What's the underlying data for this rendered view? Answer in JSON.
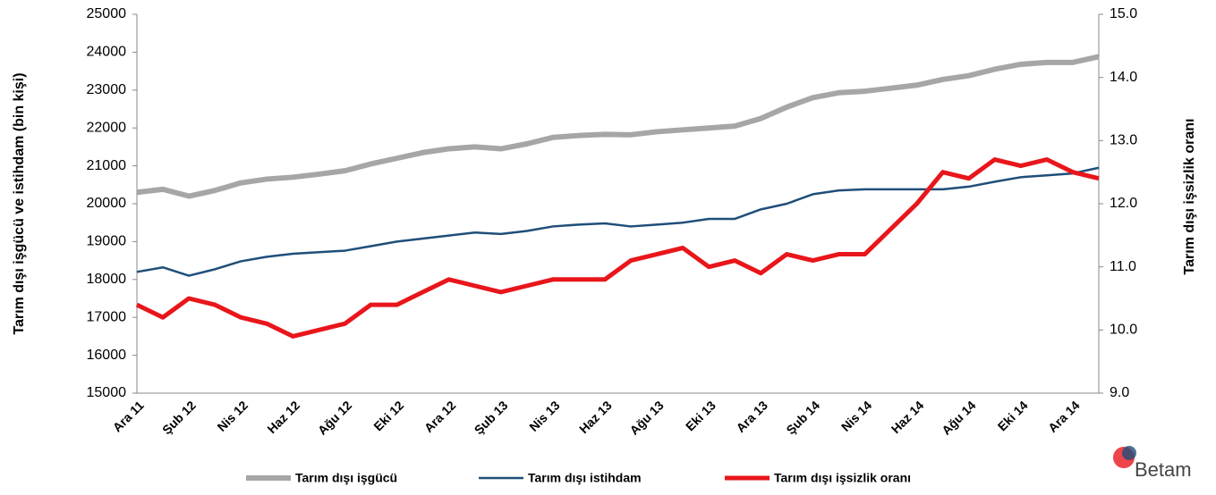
{
  "chart_data": {
    "type": "line",
    "y_label": "Tarım dışı işgücü ve istihdam (bin kişi)",
    "y2_label": "Tarım dışı işsizlik oranı",
    "logo": "Betam",
    "categories": [
      "Ara 11",
      null,
      "Şub 12",
      null,
      "Nis 12",
      null,
      "Haz 12",
      null,
      "Ağu 12",
      null,
      "Eki 12",
      null,
      "Ara 12",
      null,
      "Şub 13",
      null,
      "Nis 13",
      null,
      "Haz 13",
      null,
      "Ağu 13",
      null,
      "Eki 13",
      null,
      "Ara 13",
      null,
      "Şub 14",
      null,
      "Nis 14",
      null,
      "Haz 14",
      null,
      "Ağu 14",
      null,
      "Eki 14",
      null,
      "Ara 14",
      null
    ],
    "ylim": [
      15000,
      25000
    ],
    "yticks": [
      15000,
      16000,
      17000,
      18000,
      19000,
      20000,
      21000,
      22000,
      23000,
      24000,
      25000
    ],
    "y2lim": [
      9,
      15
    ],
    "y2ticks": [
      {
        "value": 9,
        "label": "9.0"
      },
      {
        "value": 10,
        "label": "10.0"
      },
      {
        "value": 11,
        "label": "11.0"
      },
      {
        "value": 12,
        "label": "12.0"
      },
      {
        "value": 13,
        "label": "13.0"
      },
      {
        "value": 14,
        "label": "14.0"
      },
      {
        "value": 15,
        "label": "15.0"
      }
    ],
    "series": [
      {
        "name": "Tarım dışı işgücü",
        "color": "#a6a6a6",
        "width": 6,
        "values": [
          20300,
          20380,
          20200,
          20350,
          20550,
          20650,
          20700,
          20780,
          20870,
          21050,
          21200,
          21350,
          21450,
          21500,
          21450,
          21580,
          21750,
          21800,
          21830,
          21820,
          21900,
          21950,
          22000,
          22050,
          22250,
          22550,
          22800,
          22930,
          22970,
          23050,
          23130,
          23280,
          23380,
          23550,
          23680,
          23730,
          23730,
          23880
        ]
      },
      {
        "name": "Tarım dışı istihdam",
        "color": "#1f4e79",
        "width": 2.5,
        "values": [
          18200,
          18320,
          18100,
          18270,
          18480,
          18600,
          18680,
          18720,
          18760,
          18880,
          19000,
          19080,
          19160,
          19240,
          19200,
          19280,
          19400,
          19450,
          19480,
          19400,
          19450,
          19500,
          19600,
          19600,
          19850,
          20000,
          20250,
          20350,
          20380,
          20380,
          20380,
          20380,
          20450,
          20580,
          20700,
          20750,
          20800,
          20950
        ]
      },
      {
        "name": "Tarım dışı işsizlik oranı",
        "color": "#e8161b",
        "width": 5,
        "axis": "y2",
        "values": [
          10.4,
          10.2,
          10.5,
          10.4,
          10.2,
          10.1,
          9.9,
          10.0,
          10.1,
          10.4,
          10.4,
          10.6,
          10.8,
          10.7,
          10.6,
          10.7,
          10.8,
          10.8,
          10.8,
          11.1,
          11.2,
          11.3,
          11.0,
          11.1,
          10.9,
          11.2,
          11.1,
          11.2,
          11.2,
          11.6,
          12.0,
          12.5,
          12.4,
          12.7,
          12.6,
          12.7,
          12.5,
          12.4
        ]
      }
    ]
  }
}
